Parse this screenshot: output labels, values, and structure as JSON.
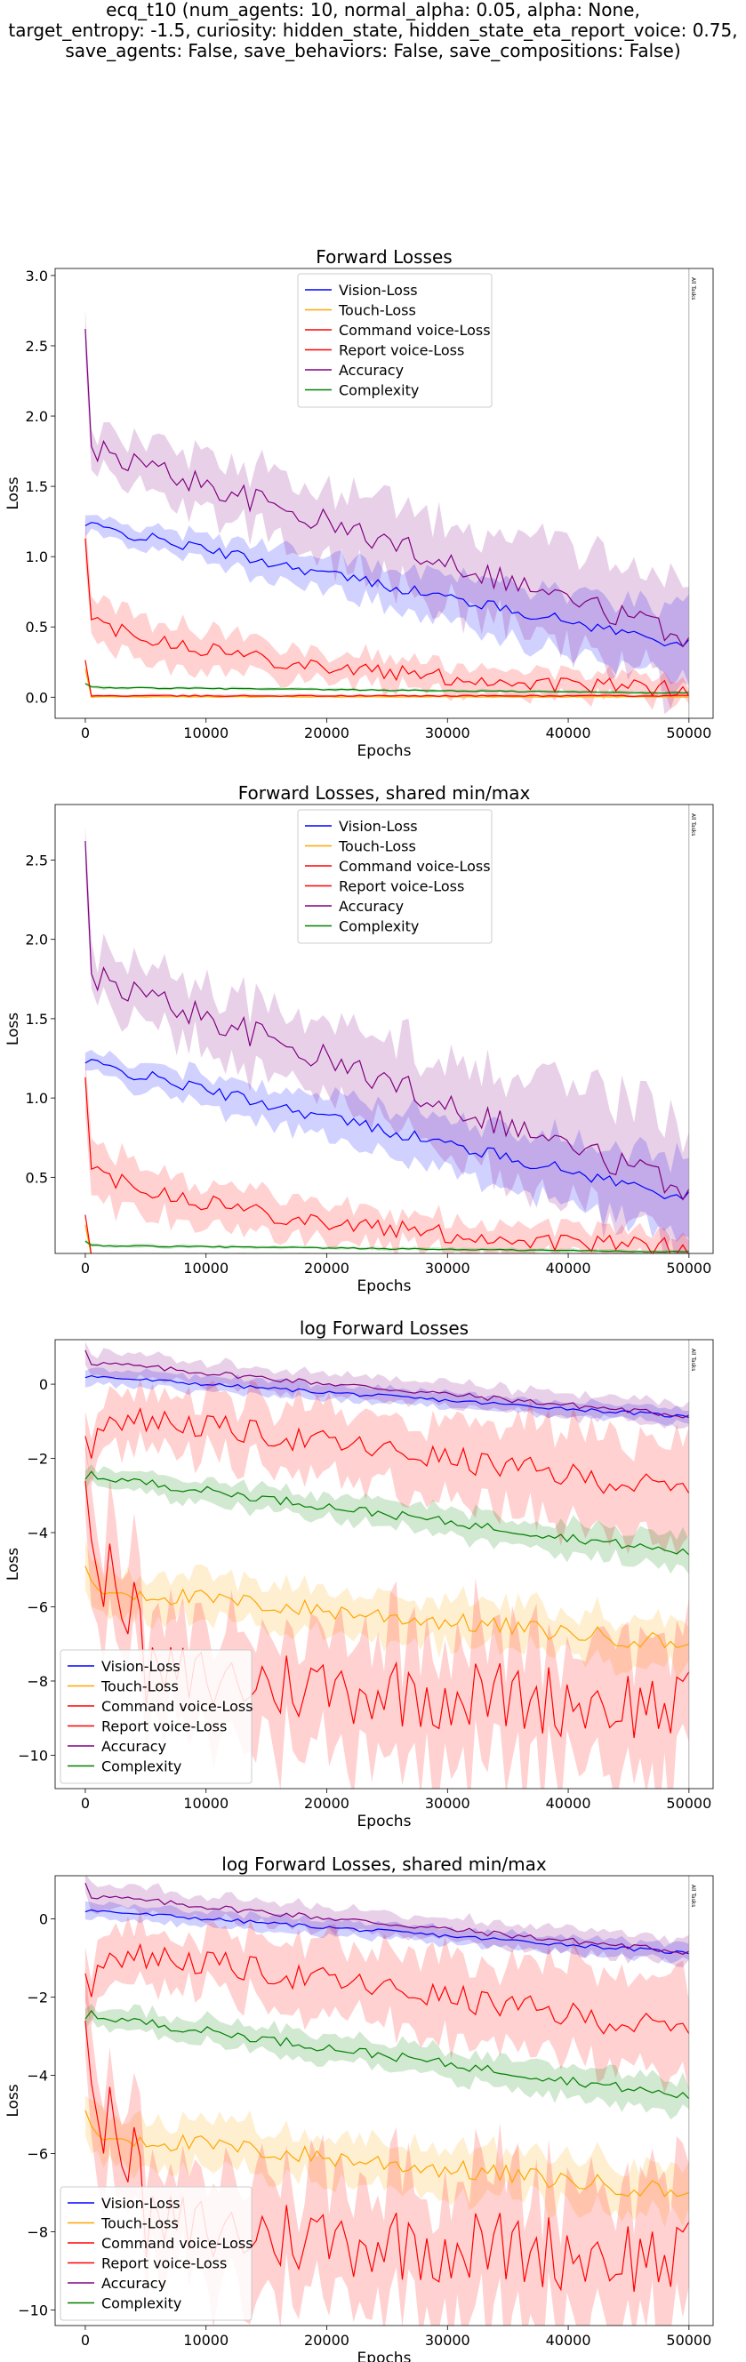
{
  "suptitle": {
    "lines": [
      "ecq_t10 (num_agents: 10, normal_alpha: 0.05, alpha: None,",
      "target_entropy: -1.5, curiosity: hidden_state, hidden_state_eta_report_voice: 0.75,",
      "save_agents: False, save_behaviors: False, save_compositions: False)"
    ]
  },
  "colors": {
    "vision": "#0000ff",
    "touch": "#ffa500",
    "command": "#ff0000",
    "report": "#ff0000",
    "accuracy": "#800080",
    "complexity": "#008000"
  },
  "chart_data": [
    {
      "type": "line",
      "title": "Forward Losses",
      "xlabel": "Epochs",
      "ylabel": "Loss",
      "xlim": [
        -2500,
        52000
      ],
      "ylim": [
        -0.15,
        3.05
      ],
      "xticks": [
        0,
        10000,
        20000,
        30000,
        40000,
        50000
      ],
      "yticks": [
        "0.0",
        "0.5",
        "1.0",
        "1.5",
        "2.0",
        "2.5",
        "3.0"
      ],
      "ytick_values": [
        0,
        0.5,
        1.0,
        1.5,
        2.0,
        2.5,
        3.0
      ],
      "log": false,
      "legend": "top-center",
      "vline_x": 50000,
      "vline_label": "All Tasks",
      "series_names": [
        "Vision-Loss",
        "Touch-Loss",
        "Command voice-Loss",
        "Report voice-Loss",
        "Accuracy",
        "Complexity"
      ]
    },
    {
      "type": "line",
      "title": "Forward Losses, shared min/max",
      "xlabel": "Epochs",
      "ylabel": "Loss",
      "xlim": [
        -2500,
        52000
      ],
      "ylim": [
        0.02,
        2.85
      ],
      "xticks": [
        0,
        10000,
        20000,
        30000,
        40000,
        50000
      ],
      "yticks": [
        "0.5",
        "1.0",
        "1.5",
        "2.0",
        "2.5"
      ],
      "ytick_values": [
        0.5,
        1.0,
        1.5,
        2.0,
        2.5
      ],
      "log": false,
      "legend": "top-center",
      "vline_x": 50000,
      "vline_label": "All Tasks",
      "series_names": [
        "Vision-Loss",
        "Touch-Loss",
        "Command voice-Loss",
        "Report voice-Loss",
        "Accuracy",
        "Complexity"
      ]
    },
    {
      "type": "line",
      "title": "log Forward Losses",
      "xlabel": "Epochs",
      "ylabel": "Loss",
      "xlim": [
        -2500,
        52000
      ],
      "ylim": [
        -10.9,
        1.2
      ],
      "xticks": [
        0,
        10000,
        20000,
        30000,
        40000,
        50000
      ],
      "yticks": [
        "−10",
        "−8",
        "−6",
        "−4",
        "−2",
        "0"
      ],
      "ytick_values": [
        -10,
        -8,
        -6,
        -4,
        -2,
        0
      ],
      "log": true,
      "legend": "lower-left",
      "vline_x": 50000,
      "vline_label": "All Tasks",
      "series_names": [
        "Vision-Loss",
        "Touch-Loss",
        "Command voice-Loss",
        "Report voice-Loss",
        "Accuracy",
        "Complexity"
      ]
    },
    {
      "type": "line",
      "title": "log Forward Losses, shared min/max",
      "xlabel": "Epochs",
      "ylabel": "Loss",
      "xlim": [
        -2500,
        52000
      ],
      "ylim": [
        -10.4,
        1.1
      ],
      "xticks": [
        0,
        10000,
        20000,
        30000,
        40000,
        50000
      ],
      "yticks": [
        "−10",
        "−8",
        "−6",
        "−4",
        "−2",
        "0"
      ],
      "ytick_values": [
        -10,
        -8,
        -6,
        -4,
        -2,
        0
      ],
      "log": true,
      "legend": "lower-left",
      "vline_x": 50000,
      "vline_label": "All Tasks",
      "series_names": [
        "Vision-Loss",
        "Touch-Loss",
        "Command voice-Loss",
        "Report voice-Loss",
        "Accuracy",
        "Complexity"
      ]
    }
  ]
}
